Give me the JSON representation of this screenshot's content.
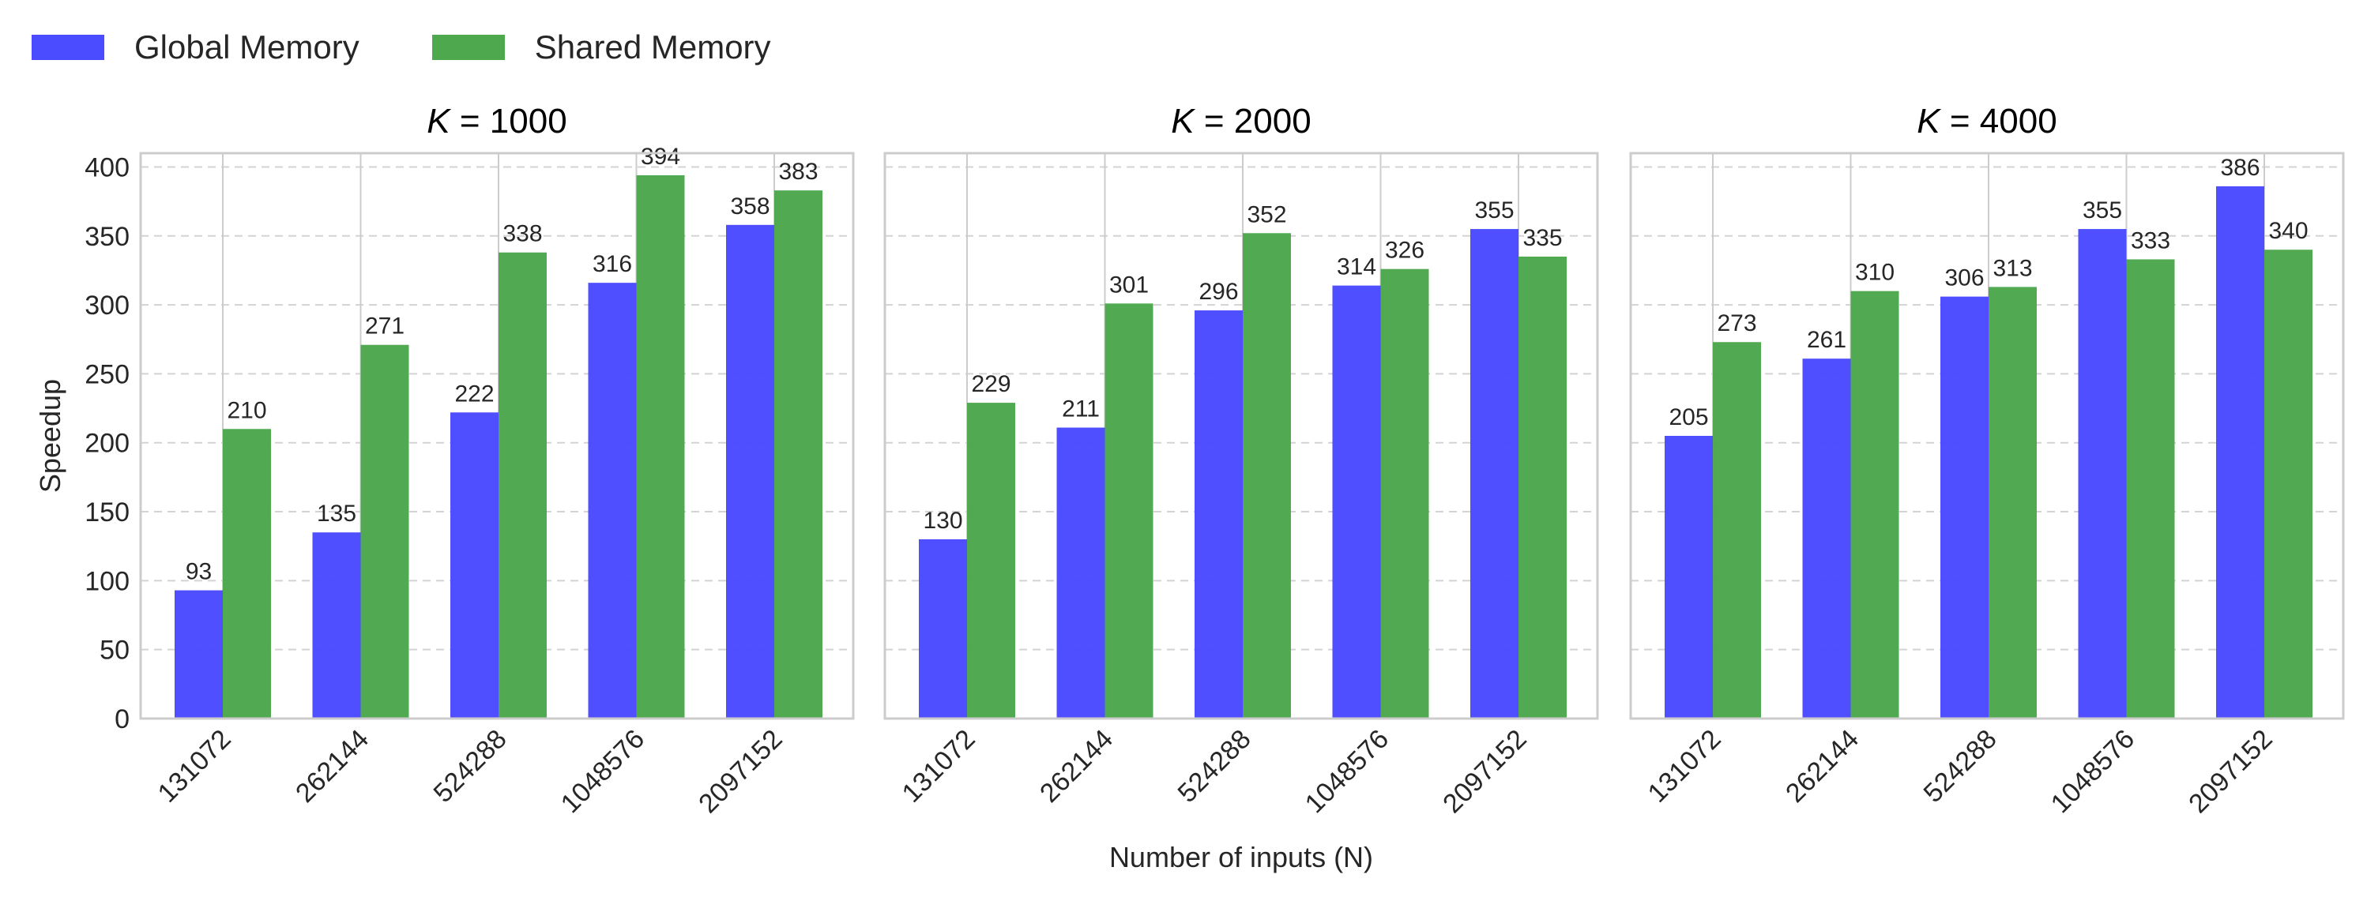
{
  "chart_data": {
    "type": "bar",
    "legend": {
      "placement": "top-left",
      "entries": [
        {
          "name": "Global Memory",
          "color": "#4b4bff"
        },
        {
          "name": "Shared Memory",
          "color": "#4ea84e"
        }
      ]
    },
    "ylabel": "Speedup",
    "xlabel": "Number of inputs (N)",
    "ylim": [
      0,
      410
    ],
    "yticks": [
      0,
      50,
      100,
      150,
      200,
      250,
      300,
      350,
      400
    ],
    "grid": {
      "y": "dashed",
      "x": "solid"
    },
    "categories": [
      "131072",
      "262144",
      "524288",
      "1048576",
      "2097152"
    ],
    "panels": [
      {
        "title_var": "K",
        "title_rest": " = 1000",
        "series": [
          {
            "name": "Global Memory",
            "values": [
              93,
              135,
              222,
              316,
              358
            ]
          },
          {
            "name": "Shared Memory",
            "values": [
              210,
              271,
              338,
              394,
              383
            ]
          }
        ]
      },
      {
        "title_var": "K",
        "title_rest": " = 2000",
        "series": [
          {
            "name": "Global Memory",
            "values": [
              130,
              211,
              296,
              314,
              355
            ]
          },
          {
            "name": "Shared Memory",
            "values": [
              229,
              301,
              352,
              326,
              335
            ]
          }
        ]
      },
      {
        "title_var": "K",
        "title_rest": " = 4000",
        "series": [
          {
            "name": "Global Memory",
            "values": [
              205,
              261,
              306,
              355,
              386
            ]
          },
          {
            "name": "Shared Memory",
            "values": [
              273,
              310,
              313,
              333,
              340
            ]
          }
        ]
      }
    ]
  }
}
